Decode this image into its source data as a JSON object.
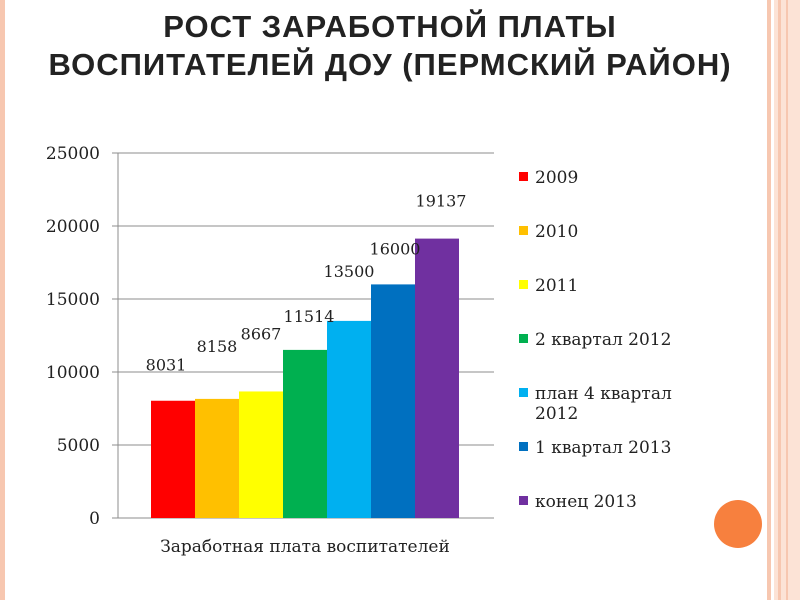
{
  "title": "РОСТ ЗАРАБОТНОЙ ПЛАТЫ ВОСПИТАТЕЛЕЙ ДОУ (ПЕРМСКИЙ РАЙОН)",
  "chart_data": {
    "type": "bar",
    "title": "",
    "xlabel": "Заработная плата воспитателей",
    "ylabel": "",
    "ylim": [
      0,
      25000
    ],
    "yticks": [
      0,
      5000,
      10000,
      15000,
      20000,
      25000
    ],
    "grid": true,
    "legend_position": "right",
    "categories": [
      "Заработная плата воспитателей"
    ],
    "series": [
      {
        "name": "2009",
        "values": [
          8031
        ],
        "color": "#ff0000"
      },
      {
        "name": "2010",
        "values": [
          8158
        ],
        "color": "#ffc000"
      },
      {
        "name": "2011",
        "values": [
          8667
        ],
        "color": "#ffff00"
      },
      {
        "name": "2 квартал 2012",
        "values": [
          11514
        ],
        "color": "#00b050"
      },
      {
        "name": "план 4 квартал 2012",
        "values": [
          13500
        ],
        "color": "#00b0f0"
      },
      {
        "name": "1 квартал 2013",
        "values": [
          16000
        ],
        "color": "#0070c0"
      },
      {
        "name": "конец 2013",
        "values": [
          19137
        ],
        "color": "#7030a0"
      }
    ]
  }
}
